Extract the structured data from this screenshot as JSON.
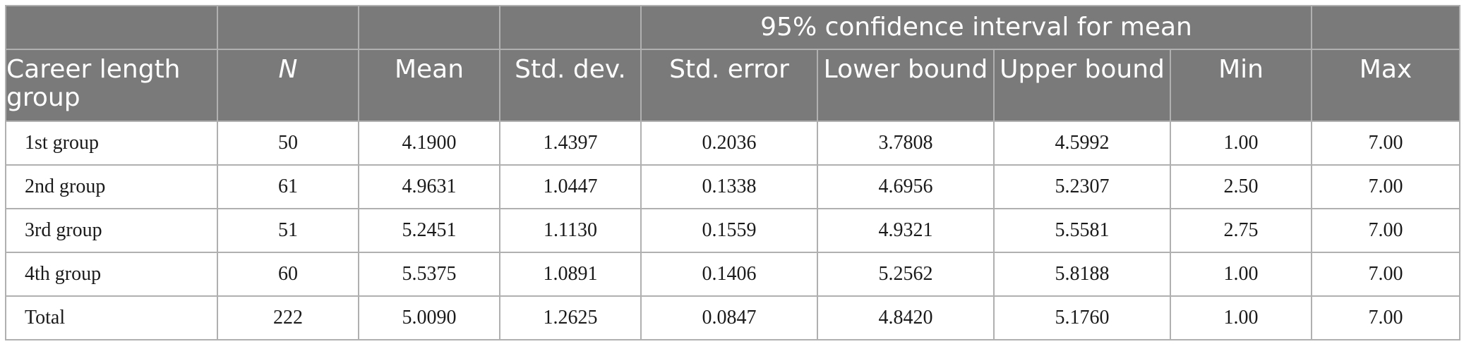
{
  "table": {
    "group_header": "95% confidence interval for mean",
    "headers": [
      "Career length group",
      "N",
      "Mean",
      "Std. dev.",
      "Std. error",
      "Lower bound",
      "Upper bound",
      "Min",
      "Max"
    ],
    "rows": [
      [
        "1st group",
        "50",
        "4.1900",
        "1.4397",
        "0.2036",
        "3.7808",
        "4.5992",
        "1.00",
        "7.00"
      ],
      [
        "2nd group",
        "61",
        "4.9631",
        "1.0447",
        "0.1338",
        "4.6956",
        "5.2307",
        "2.50",
        "7.00"
      ],
      [
        "3rd group",
        "51",
        "5.2451",
        "1.1130",
        "0.1559",
        "4.9321",
        "5.5581",
        "2.75",
        "7.00"
      ],
      [
        "4th group",
        "60",
        "5.5375",
        "1.0891",
        "0.1406",
        "5.2562",
        "5.8188",
        "1.00",
        "7.00"
      ],
      [
        "Total",
        "222",
        "5.0090",
        "1.2625",
        "0.0847",
        "4.8420",
        "5.1760",
        "1.00",
        "7.00"
      ]
    ]
  }
}
